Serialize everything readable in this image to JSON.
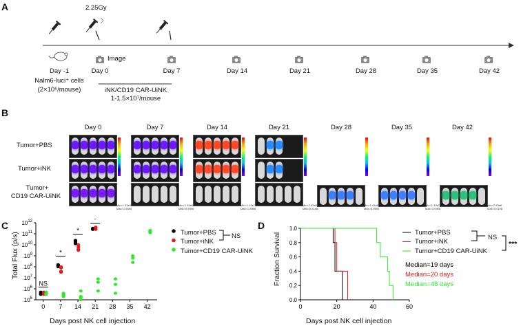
{
  "panel_a": {
    "letter": "A",
    "dose": "2.25Gy",
    "image_label": "Image",
    "days": [
      "Day -1",
      "Day 0",
      "Day 7",
      "Day 14",
      "Day 21",
      "Day 28",
      "Day 35",
      "Day 42"
    ],
    "cells_line1": "Nalm6-luci⁺ cells",
    "cells_line2": "(2×10⁶/mouse)",
    "treatment_line1": "iNK/CD19 CAR-UiNK",
    "treatment_line2": "1-1.5×10⁷/mouse",
    "icons": [
      "syringe-icon",
      "camera-icon",
      "mouse-icon",
      "radiation-icon"
    ]
  },
  "panel_b": {
    "letter": "B",
    "columns": [
      "Day 0",
      "Day 7",
      "Day 14",
      "Day 21",
      "Day 28",
      "Day 35",
      "Day 42"
    ],
    "rows": [
      "Tumor+PBS",
      "Tumor+iNK",
      "Tumor+"
    ],
    "row3_line2": "CD19 CAR-UiNK",
    "scales": [
      {
        "min": "Min=1.33e3",
        "max": "Max=1.55e6"
      },
      {
        "min": "Min=1.94e6",
        "max": "Max=5.95e6"
      },
      {
        "min": "Min=1.19e7",
        "max": "Max=1.89e8"
      },
      {
        "min": "Min=2.63e8",
        "max": "Max=5.31e8"
      },
      {
        "min": "Min=1.04e6",
        "max": "Max=5.05e6"
      },
      {
        "min": "Min=1.19e7",
        "max": "Max=3.09e8"
      },
      {
        "min": "Min=2.93e8",
        "max": "Max=5.01e8"
      }
    ]
  },
  "panel_c": {
    "letter": "C",
    "ylabel": "Total Flux (p/s)",
    "xlabel": "Days post NK cell injection",
    "legend": [
      "Tumor+PBS",
      "Tumor+iNK",
      "Tumor+CD19 CAR-UiNK"
    ],
    "ns_label": "NS",
    "sig_labels": [
      "NS",
      "*",
      "*",
      "*"
    ]
  },
  "panel_d": {
    "letter": "D",
    "ylabel": "Fraction Survival",
    "xlabel": "Days post NK cell injection",
    "legend": [
      "Tumor+PBS",
      "Tumor+iNK",
      "Tumor+CD19 CAR-UiNK"
    ],
    "ns_label": "NS",
    "sig_label": "***",
    "medians": [
      "Median=19 days",
      "Median=20 days",
      "Median=48 days"
    ]
  },
  "chart_data": [
    {
      "type": "scatter",
      "title": "",
      "xlabel": "Days post NK cell injection",
      "ylabel": "Total Flux (p/s)",
      "x_ticks": [
        0,
        7,
        14,
        21,
        28,
        35,
        42
      ],
      "y_scale": "log10",
      "y_ticks": [
        "10^5",
        "10^6",
        "10^7",
        "10^8",
        "10^9",
        "10^10",
        "10^11",
        "10^12"
      ],
      "ylim_log10": [
        5,
        12
      ],
      "series": [
        {
          "name": "Tumor+PBS",
          "color": "#000000",
          "points": [
            [
              0,
              5.5
            ],
            [
              0,
              5.6
            ],
            [
              0,
              5.7
            ],
            [
              0,
              5.6
            ],
            [
              0,
              5.5
            ],
            [
              7,
              8.1
            ],
            [
              7,
              8.2
            ],
            [
              7,
              8.0
            ],
            [
              7,
              8.1
            ],
            [
              14,
              10.2
            ],
            [
              14,
              10.4
            ],
            [
              14,
              10.3
            ],
            [
              14,
              10.1
            ],
            [
              21,
              11.4
            ],
            [
              21,
              11.5
            ],
            [
              21,
              11.4
            ]
          ]
        },
        {
          "name": "Tumor+iNK",
          "color": "#e41a1c",
          "points": [
            [
              0,
              5.5
            ],
            [
              0,
              5.6
            ],
            [
              0,
              5.7
            ],
            [
              0,
              5.6
            ],
            [
              7,
              7.6
            ],
            [
              7,
              7.9
            ],
            [
              7,
              8.0
            ],
            [
              7,
              7.5
            ],
            [
              14,
              9.6
            ],
            [
              14,
              9.8
            ],
            [
              14,
              10.0
            ],
            [
              14,
              9.5
            ],
            [
              21,
              11.5
            ],
            [
              21,
              11.4
            ],
            [
              21,
              11.6
            ]
          ]
        },
        {
          "name": "Tumor+CD19 CAR-UiNK",
          "color": "#2ee82e",
          "points": [
            [
              0,
              5.6
            ],
            [
              0,
              5.7
            ],
            [
              0,
              5.5
            ],
            [
              0,
              5.6
            ],
            [
              7,
              5.5
            ],
            [
              7,
              5.3
            ],
            [
              7,
              5.6
            ],
            [
              7,
              5.4
            ],
            [
              14,
              5.0
            ],
            [
              14,
              5.3
            ],
            [
              14,
              5.8
            ],
            [
              14,
              5.2
            ],
            [
              21,
              6.6
            ],
            [
              21,
              6.9
            ],
            [
              21,
              5.8
            ],
            [
              28,
              5.6
            ],
            [
              28,
              6.4
            ],
            [
              28,
              6.9
            ],
            [
              35,
              8.4
            ],
            [
              35,
              8.8
            ],
            [
              35,
              9.0
            ],
            [
              42,
              11.1
            ],
            [
              42,
              11.3
            ],
            [
              42,
              11.2
            ]
          ]
        }
      ]
    },
    {
      "type": "line",
      "title": "",
      "xlabel": "Days post NK cell injection",
      "ylabel": "Fraction Survival",
      "xlim": [
        0,
        60
      ],
      "ylim": [
        0,
        1.0
      ],
      "x_ticks": [
        0,
        20,
        40,
        60
      ],
      "y_ticks": [
        0.0,
        0.2,
        0.4,
        0.6,
        0.8,
        1.0
      ],
      "series": [
        {
          "name": "Tumor+PBS",
          "color": "#000000",
          "steps": [
            [
              0,
              1.0
            ],
            [
              18,
              1.0
            ],
            [
              18,
              0.8
            ],
            [
              19,
              0.8
            ],
            [
              19,
              0.4
            ],
            [
              23,
              0.4
            ],
            [
              23,
              0.0
            ]
          ]
        },
        {
          "name": "Tumor+iNK",
          "color": "#e41a1c",
          "steps": [
            [
              0,
              1.0
            ],
            [
              19,
              1.0
            ],
            [
              19,
              0.8
            ],
            [
              20,
              0.8
            ],
            [
              20,
              0.4
            ],
            [
              26,
              0.4
            ],
            [
              26,
              0.0
            ]
          ]
        },
        {
          "name": "Tumor+CD19 CAR-UiNK",
          "color": "#2ee82e",
          "steps": [
            [
              0,
              1.0
            ],
            [
              42,
              1.0
            ],
            [
              42,
              0.8
            ],
            [
              44,
              0.8
            ],
            [
              44,
              0.6
            ],
            [
              48,
              0.6
            ],
            [
              48,
              0.4
            ],
            [
              49,
              0.4
            ],
            [
              49,
              0.2
            ],
            [
              51,
              0.2
            ],
            [
              51,
              0.0
            ]
          ]
        }
      ]
    }
  ]
}
